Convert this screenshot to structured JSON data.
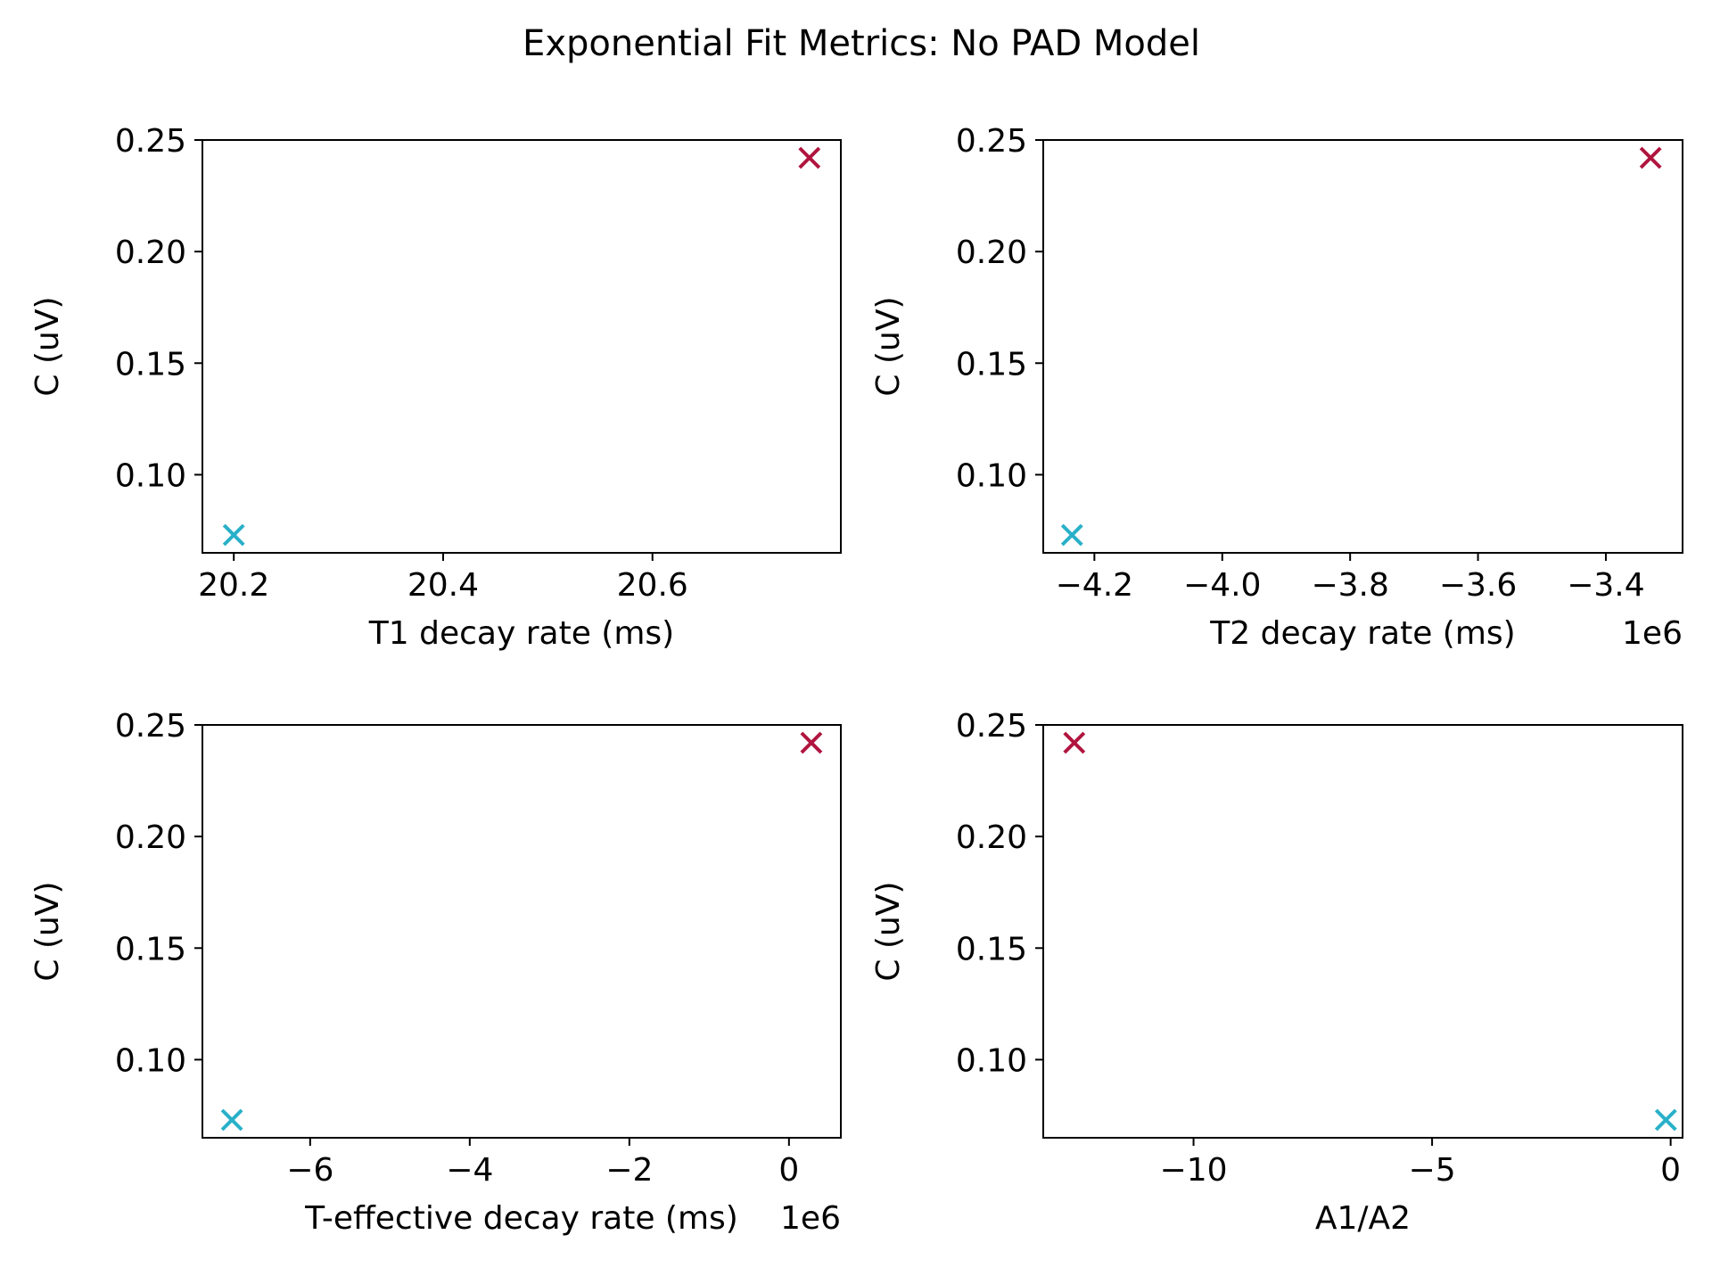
{
  "figure": {
    "title": "Exponential Fit Metrics: No PAD Model"
  },
  "chart_data": [
    {
      "type": "scatter",
      "xlabel": "T1 decay rate (ms)",
      "ylabel": "C (uV)",
      "offset_label": "",
      "xlim": [
        20.17,
        20.78
      ],
      "ylim": [
        0.065,
        0.25
      ],
      "xticks": [
        20.2,
        20.4,
        20.6
      ],
      "xtick_labels": [
        "20.2",
        "20.4",
        "20.6"
      ],
      "yticks": [
        0.1,
        0.15,
        0.2,
        0.25
      ],
      "ytick_labels": [
        "0.10",
        "0.15",
        "0.20",
        "0.25"
      ],
      "points": [
        {
          "x": 20.2,
          "y": 0.073,
          "color": "#29b0c9"
        },
        {
          "x": 20.75,
          "y": 0.242,
          "color": "#b0153f"
        }
      ],
      "marker": "x",
      "grid": false
    },
    {
      "type": "scatter",
      "xlabel": "T2 decay rate (ms)",
      "ylabel": "C (uV)",
      "offset_label": "1e6",
      "xlim": [
        -4.28,
        -3.28
      ],
      "ylim": [
        0.065,
        0.25
      ],
      "xticks": [
        -4.2,
        -4.0,
        -3.8,
        -3.6,
        -3.4
      ],
      "xtick_labels": [
        "−4.2",
        "−4.0",
        "−3.8",
        "−3.6",
        "−3.4"
      ],
      "yticks": [
        0.1,
        0.15,
        0.2,
        0.25
      ],
      "ytick_labels": [
        "0.10",
        "0.15",
        "0.20",
        "0.25"
      ],
      "points": [
        {
          "x": -4.235,
          "y": 0.073,
          "color": "#29b0c9"
        },
        {
          "x": -3.33,
          "y": 0.242,
          "color": "#b0153f"
        }
      ],
      "marker": "x",
      "grid": false
    },
    {
      "type": "scatter",
      "xlabel": "T-effective decay rate (ms)",
      "ylabel": "C (uV)",
      "offset_label": "1e6",
      "xlim": [
        -7.35,
        0.65
      ],
      "ylim": [
        0.065,
        0.25
      ],
      "xticks": [
        -6,
        -4,
        -2,
        0
      ],
      "xtick_labels": [
        "−6",
        "−4",
        "−2",
        "0"
      ],
      "yticks": [
        0.1,
        0.15,
        0.2,
        0.25
      ],
      "ytick_labels": [
        "0.10",
        "0.15",
        "0.20",
        "0.25"
      ],
      "points": [
        {
          "x": -6.98,
          "y": 0.073,
          "color": "#29b0c9"
        },
        {
          "x": 0.28,
          "y": 0.242,
          "color": "#b0153f"
        }
      ],
      "marker": "x",
      "grid": false
    },
    {
      "type": "scatter",
      "xlabel": "A1/A2",
      "ylabel": "C (uV)",
      "offset_label": "",
      "xlim": [
        -13.15,
        0.25
      ],
      "ylim": [
        0.065,
        0.25
      ],
      "xticks": [
        -10,
        -5,
        0
      ],
      "xtick_labels": [
        "−10",
        "−5",
        "0"
      ],
      "yticks": [
        0.1,
        0.15,
        0.2,
        0.25
      ],
      "ytick_labels": [
        "0.10",
        "0.15",
        "0.20",
        "0.25"
      ],
      "points": [
        {
          "x": -12.5,
          "y": 0.242,
          "color": "#b0153f"
        },
        {
          "x": -0.1,
          "y": 0.073,
          "color": "#29b0c9"
        }
      ],
      "marker": "x",
      "grid": false
    }
  ]
}
